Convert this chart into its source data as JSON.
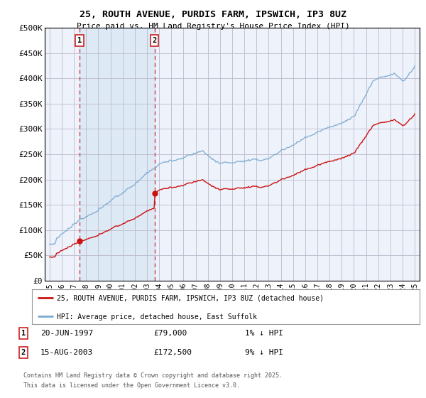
{
  "title_line1": "25, ROUTH AVENUE, PURDIS FARM, IPSWICH, IP3 8UZ",
  "title_line2": "Price paid vs. HM Land Registry's House Price Index (HPI)",
  "ylim": [
    0,
    500000
  ],
  "yticks": [
    0,
    50000,
    100000,
    150000,
    200000,
    250000,
    300000,
    350000,
    400000,
    450000,
    500000
  ],
  "ytick_labels": [
    "£0",
    "£50K",
    "£100K",
    "£150K",
    "£200K",
    "£250K",
    "£300K",
    "£350K",
    "£400K",
    "£450K",
    "£500K"
  ],
  "background_color": "#ffffff",
  "plot_bg_color": "#eef2fb",
  "grid_color": "#bbbbcc",
  "hpi_color": "#7aaad0",
  "price_color": "#cc1111",
  "sale1_date": 1997.47,
  "sale1_price": 79000,
  "sale2_date": 2003.62,
  "sale2_price": 172500,
  "legend_line1": "25, ROUTH AVENUE, PURDIS FARM, IPSWICH, IP3 8UZ (detached house)",
  "legend_line2": "HPI: Average price, detached house, East Suffolk",
  "footnote3": "Contains HM Land Registry data © Crown copyright and database right 2025.",
  "footnote4": "This data is licensed under the Open Government Licence v3.0.",
  "xtick_years": [
    1995,
    1996,
    1997,
    1998,
    1999,
    2000,
    2001,
    2002,
    2003,
    2004,
    2005,
    2006,
    2007,
    2008,
    2009,
    2010,
    2011,
    2012,
    2013,
    2014,
    2015,
    2016,
    2017,
    2018,
    2019,
    2020,
    2021,
    2022,
    2023,
    2024,
    2025
  ],
  "xlim_left": 1994.6,
  "xlim_right": 2025.4
}
